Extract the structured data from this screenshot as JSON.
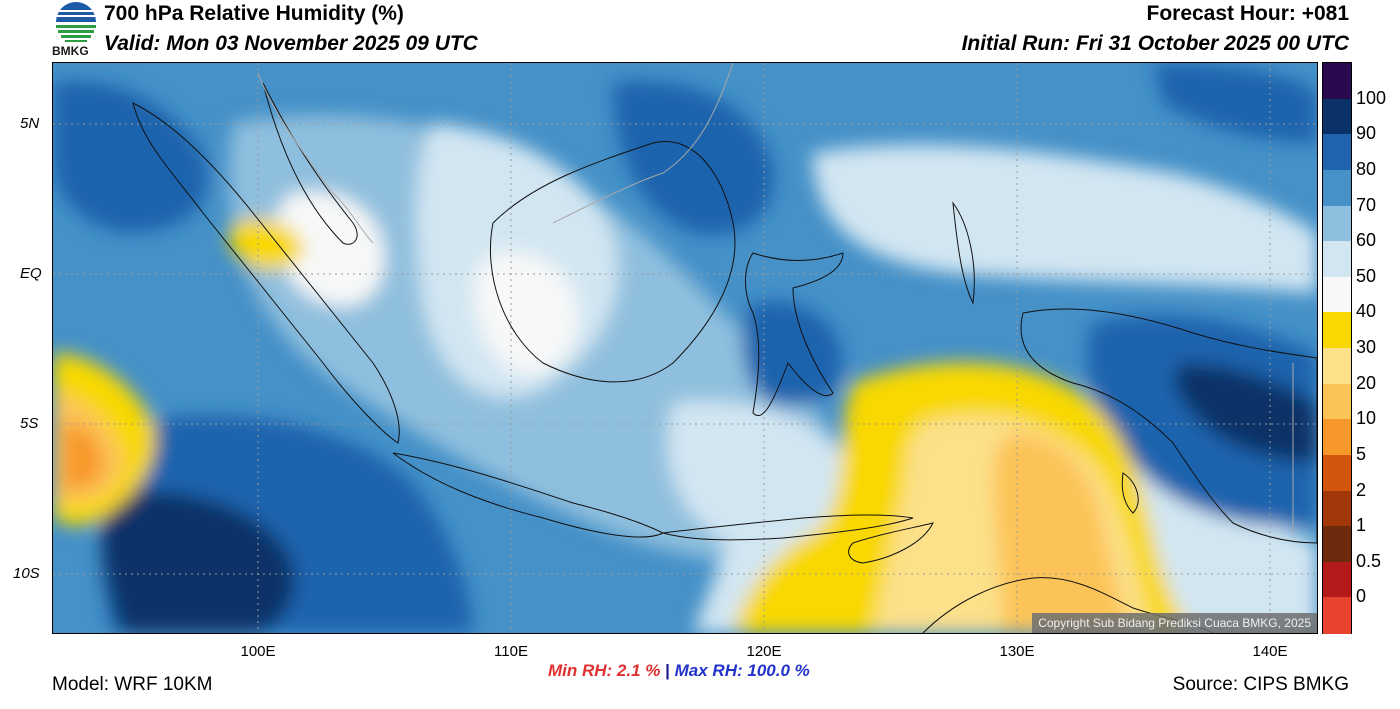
{
  "header": {
    "title": "700 hPa Relative Humidity (%)",
    "valid": "Valid: Mon 03 November 2025 09 UTC",
    "forecast_hour": "Forecast Hour: +081",
    "initial_run": "Initial Run: Fri 31 October 2025 00 UTC",
    "logo_text": "BMKG"
  },
  "map": {
    "lat_labels": [
      "5N",
      "EQ",
      "5S",
      "10S"
    ],
    "lon_labels": [
      "100E",
      "110E",
      "120E",
      "130E",
      "140E"
    ],
    "copyright": "Copyright Sub Bidang Prediksi Cuaca BMKG, 2025"
  },
  "colorbar": {
    "labels": [
      "100",
      "90",
      "80",
      "70",
      "60",
      "50",
      "40",
      "30",
      "20",
      "10",
      "5",
      "2",
      "1",
      "0.5",
      "0"
    ],
    "colors": [
      "#2a0a4f",
      "#0b3268",
      "#1f64ad",
      "#4591c8",
      "#8fbfde",
      "#d2e6f2",
      "#f7f8f8",
      "#f8d800",
      "#fce08a",
      "#fcc458",
      "#f8982a",
      "#d2570c",
      "#a2380a",
      "#6e2a0c",
      "#b51a1a",
      "#e8432e"
    ]
  },
  "footer": {
    "model": "Model: WRF 10KM",
    "min_rh": "Min RH:   2.1 %",
    "separator": "|",
    "max_rh": "Max RH: 100.0 %",
    "source": "Source: CIPS BMKG"
  }
}
